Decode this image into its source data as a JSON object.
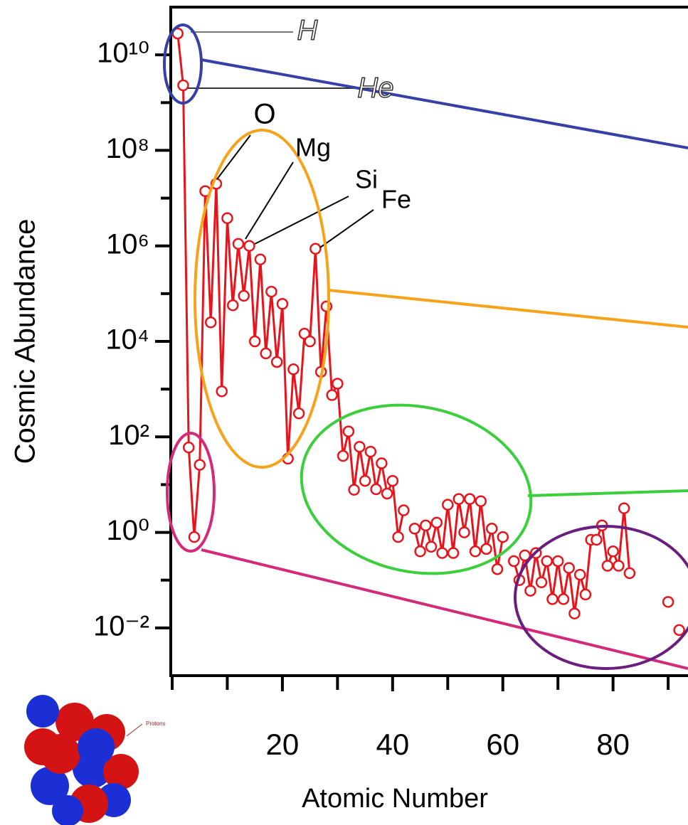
{
  "chart_data": {
    "type": "line",
    "x_label": "Atomic Number",
    "y_label": "Cosmic Abundance",
    "log_y": true,
    "xlim": [
      0,
      93.6
    ],
    "ylim": [
      0.001,
      100000000000
    ],
    "xticks": [
      20,
      40,
      60,
      80
    ],
    "xminorticks": [
      0,
      10,
      30,
      50,
      70,
      90
    ],
    "yticks": [
      {
        "value": 0.01,
        "label": "10⁻²"
      },
      {
        "value": 1,
        "label": "10⁰"
      },
      {
        "value": 100,
        "label": "10²"
      },
      {
        "value": 10000,
        "label": "10⁴"
      },
      {
        "value": 1000000,
        "label": "10⁶"
      },
      {
        "value": 100000000,
        "label": "10⁸"
      },
      {
        "value": 10000000000,
        "label": "10¹⁰"
      }
    ],
    "yminorticks": [
      0.1,
      10,
      1000,
      100000,
      10000000,
      1000000000
    ],
    "x": [
      1,
      2,
      3,
      4,
      5,
      6,
      7,
      8,
      9,
      10,
      11,
      12,
      13,
      14,
      15,
      16,
      17,
      18,
      19,
      20,
      21,
      22,
      23,
      24,
      25,
      26,
      27,
      28,
      29,
      30,
      31,
      32,
      33,
      34,
      35,
      36,
      37,
      38,
      39,
      40,
      41,
      42,
      43,
      44,
      45,
      46,
      47,
      48,
      49,
      50,
      51,
      52,
      53,
      54,
      55,
      56,
      57,
      58,
      59,
      60,
      61,
      62,
      63,
      64,
      65,
      66,
      67,
      68,
      69,
      70,
      71,
      72,
      73,
      74,
      75,
      76,
      77,
      78,
      79,
      80,
      81,
      82,
      83,
      84,
      85,
      86,
      87,
      88,
      89,
      90,
      91,
      92
    ],
    "series": [
      {
        "color": "#e8141c",
        "marker_fill": "#ffffff",
        "values": [
          28000000000,
          2300000000,
          60,
          0.8,
          26,
          14000000,
          25000,
          20000000,
          900,
          3800000,
          57000,
          1100000,
          90000,
          1000000,
          10000,
          520000,
          5600,
          110000,
          3700,
          61000,
          35,
          2600,
          310,
          14500,
          10000,
          870000,
          2300,
          54000,
          750,
          1300,
          40,
          130,
          7.8,
          62,
          12,
          49,
          8,
          28,
          6.5,
          12,
          0.8,
          2.9,
          null,
          1.2,
          0.4,
          1.4,
          0.5,
          1.6,
          0.37,
          3.8,
          0.37,
          5,
          1,
          5,
          0.4,
          4.5,
          0.45,
          1.2,
          0.17,
          0.8,
          null,
          0.25,
          0.1,
          0.33,
          0.06,
          0.37,
          0.09,
          0.25,
          0.04,
          0.25,
          0.04,
          0.18,
          0.02,
          0.13,
          0.05,
          0.7,
          0.7,
          1.4,
          0.2,
          0.4,
          0.2,
          3.2,
          0.14,
          null,
          null,
          null,
          null,
          null,
          null,
          0.035,
          null,
          0.009
        ]
      }
    ],
    "annotations": [
      "H",
      "He",
      "O",
      "Mg",
      "Si",
      "Fe",
      "Protons"
    ]
  }
}
